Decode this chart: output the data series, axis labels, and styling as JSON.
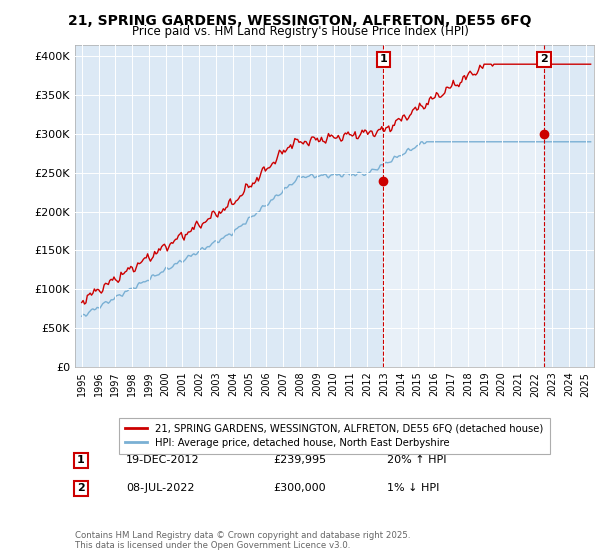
{
  "title_line1": "21, SPRING GARDENS, WESSINGTON, ALFRETON, DE55 6FQ",
  "title_line2": "Price paid vs. HM Land Registry's House Price Index (HPI)",
  "ylabel_ticks": [
    "£0",
    "£50K",
    "£100K",
    "£150K",
    "£200K",
    "£250K",
    "£300K",
    "£350K",
    "£400K"
  ],
  "ylabel_values": [
    0,
    50000,
    100000,
    150000,
    200000,
    250000,
    300000,
    350000,
    400000
  ],
  "ylim": [
    0,
    415000
  ],
  "xlim_start": 1994.6,
  "xlim_end": 2025.5,
  "background_color": "#dce9f5",
  "shade_color": "#e8f0f8",
  "plot_bg": "#dce9f5",
  "red_color": "#cc0000",
  "blue_color": "#7ab0d4",
  "marker1_x": 2012.96,
  "marker1_y": 239995,
  "marker1_label": "1",
  "marker1_date": "19-DEC-2012",
  "marker1_price": "£239,995",
  "marker1_hpi": "20% ↑ HPI",
  "marker2_x": 2022.52,
  "marker2_y": 300000,
  "marker2_label": "2",
  "marker2_date": "08-JUL-2022",
  "marker2_price": "£300,000",
  "marker2_hpi": "1% ↓ HPI",
  "legend_line1": "21, SPRING GARDENS, WESSINGTON, ALFRETON, DE55 6FQ (detached house)",
  "legend_line2": "HPI: Average price, detached house, North East Derbyshire",
  "footer": "Contains HM Land Registry data © Crown copyright and database right 2025.\nThis data is licensed under the Open Government Licence v3.0.",
  "fig_width": 6.0,
  "fig_height": 5.6,
  "dpi": 100
}
